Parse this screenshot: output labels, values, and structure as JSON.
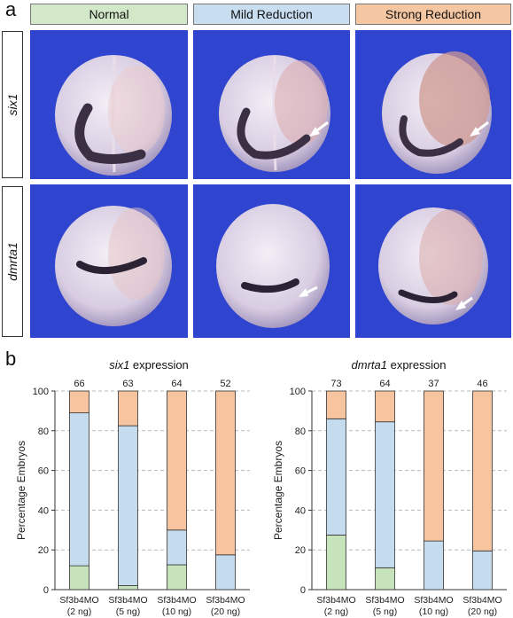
{
  "panel_a": {
    "letter": "a",
    "columns": [
      {
        "label": "Normal",
        "color": "#d3e8c8"
      },
      {
        "label": "Mild Reduction",
        "color": "#c8ddf0"
      },
      {
        "label": "Strong Reduction",
        "color": "#f5c6a2"
      }
    ],
    "rows": [
      {
        "label": "six1"
      },
      {
        "label": "dmrta1"
      }
    ],
    "background_color": "#2f44cf",
    "arrow_color": "#ffffff"
  },
  "panel_b": {
    "letter": "b",
    "colors": {
      "normal": "#c7e3bb",
      "mild": "#c5dcef",
      "strong": "#f7c4a0"
    }
  },
  "chart_data": [
    {
      "type": "bar",
      "stacked": true,
      "title": "six1 expression",
      "title_gene": "six1",
      "title_suffix": " expression",
      "ylabel": "Percentage Embryos",
      "ylim": [
        0,
        100
      ],
      "yticks": [
        0,
        20,
        40,
        60,
        80,
        100
      ],
      "grid": true,
      "categories": [
        "Sf3b4MO",
        "Sf3b4MO",
        "Sf3b4MO",
        "Sf3b4MO"
      ],
      "category_sublabels": [
        "(2 ng)",
        "(5 ng)",
        "(10 ng)",
        "(20 ng)"
      ],
      "counts": [
        "66",
        "63",
        "64",
        "52"
      ],
      "series": [
        {
          "name": "Normal",
          "values": [
            12,
            2,
            12.5,
            0
          ]
        },
        {
          "name": "Mild Reduction",
          "values": [
            77,
            80.5,
            17.5,
            17.5
          ]
        },
        {
          "name": "Strong Reduction",
          "values": [
            11,
            17.5,
            70,
            82.5
          ]
        }
      ]
    },
    {
      "type": "bar",
      "stacked": true,
      "title": "dmrta1 expression",
      "title_gene": "dmrta1",
      "title_suffix": " expression",
      "ylabel": "Percentage Embryos",
      "ylim": [
        0,
        100
      ],
      "yticks": [
        0,
        20,
        40,
        60,
        80,
        100
      ],
      "grid": true,
      "categories": [
        "Sf3b4MO",
        "Sf3b4MO",
        "Sf3b4MO",
        "Sf3b4MO"
      ],
      "category_sublabels": [
        "(2 ng)",
        "(5 ng)",
        "(10 ng)",
        "(20 ng)"
      ],
      "counts": [
        "73",
        "64",
        "37",
        "46"
      ],
      "series": [
        {
          "name": "Normal",
          "values": [
            27.5,
            11,
            0,
            0
          ]
        },
        {
          "name": "Mild Reduction",
          "values": [
            58.5,
            73.5,
            24.5,
            19.5
          ]
        },
        {
          "name": "Strong Reduction",
          "values": [
            14,
            15.5,
            75.5,
            80.5
          ]
        }
      ]
    }
  ]
}
